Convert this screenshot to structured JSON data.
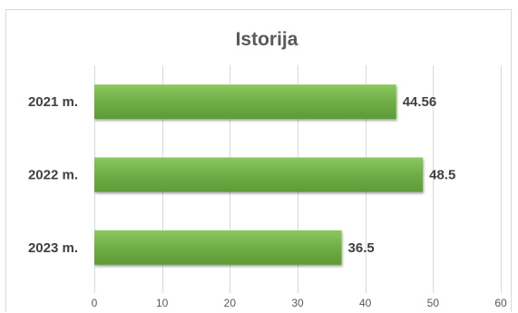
{
  "chart_data": {
    "type": "bar",
    "orientation": "horizontal",
    "title": "Istorija",
    "categories": [
      "2021 m.",
      "2022 m.",
      "2023 m."
    ],
    "values": [
      44.56,
      48.5,
      36.5
    ],
    "value_labels": [
      "44.56",
      "48.5",
      "36.5"
    ],
    "xlim": [
      0,
      60
    ],
    "xticks": [
      0,
      10,
      20,
      30,
      40,
      50,
      60
    ],
    "xlabel": "",
    "ylabel": "",
    "grid": true,
    "legend": "none",
    "bar_color": "#70ad47"
  }
}
